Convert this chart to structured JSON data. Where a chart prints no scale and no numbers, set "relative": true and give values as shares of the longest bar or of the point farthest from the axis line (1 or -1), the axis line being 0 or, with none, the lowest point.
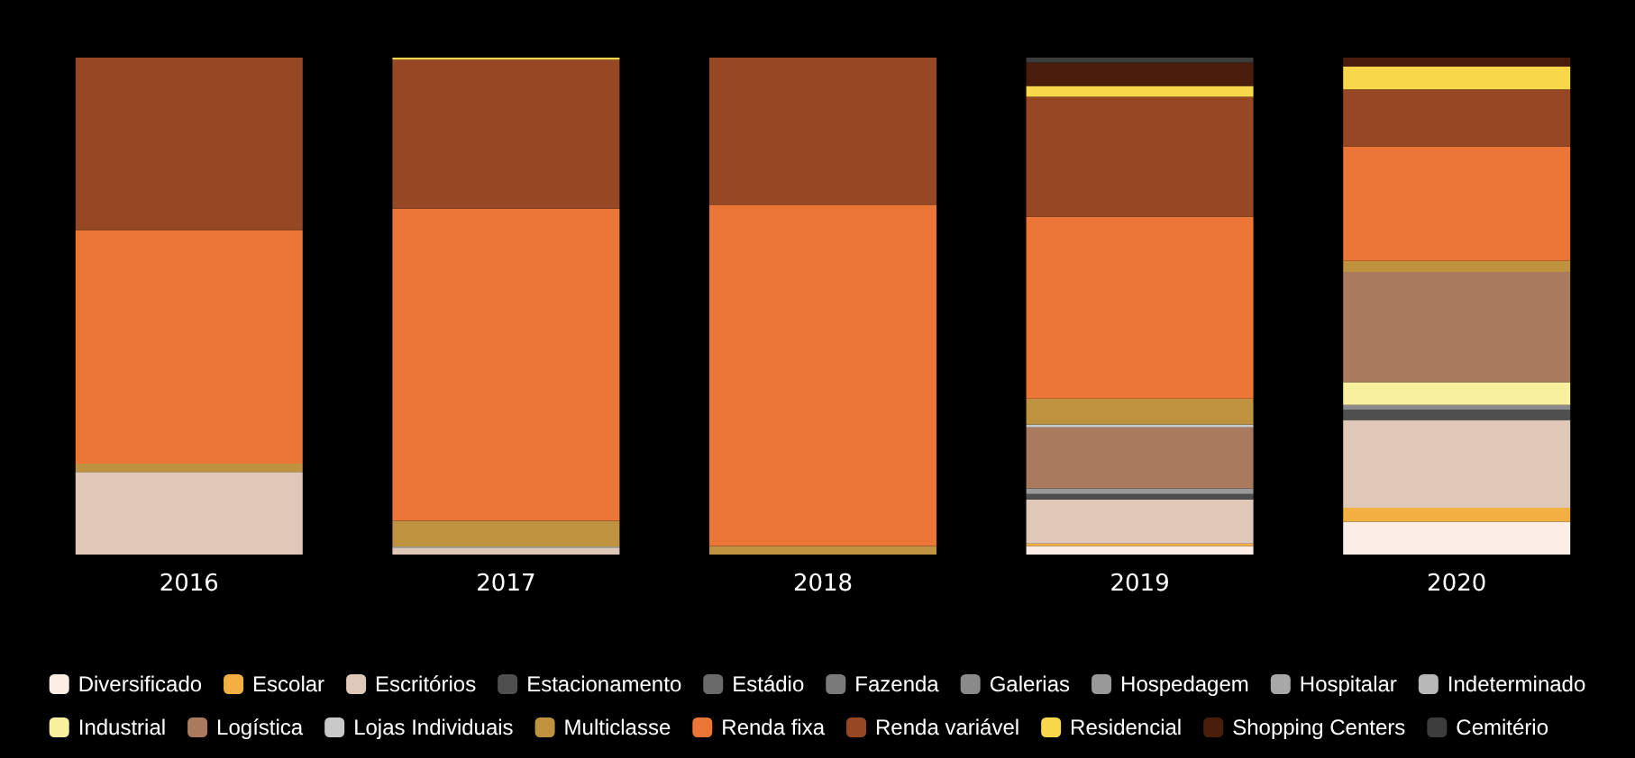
{
  "chart_data": {
    "type": "bar",
    "stacked": true,
    "relative": true,
    "legend": "bottom",
    "categories": [
      "2016",
      "2017",
      "2018",
      "2019",
      "2020"
    ],
    "series": [
      {
        "name": "Diversificado",
        "color": "#fbeee6",
        "values": [
          null,
          null,
          null,
          0.017,
          0.066
        ]
      },
      {
        "name": "Escolar",
        "color": "#f2b042",
        "values": [
          null,
          null,
          null,
          0.005,
          0.028
        ]
      },
      {
        "name": "Escritórios",
        "color": "#e0c8b8",
        "values": [
          0.166,
          0.013,
          null,
          0.089,
          0.177
        ]
      },
      {
        "name": "Estacionamento",
        "color": "#4f4f4f",
        "values": [
          null,
          null,
          null,
          0.011,
          0.02
        ]
      },
      {
        "name": "Estádio",
        "color": "#6a6a6a",
        "values": [
          null,
          null,
          null,
          null,
          null
        ]
      },
      {
        "name": "Fazenda",
        "color": "#7a7a7a",
        "values": [
          null,
          null,
          null,
          null,
          null
        ]
      },
      {
        "name": "Galerias",
        "color": "#8a8a8a",
        "values": [
          null,
          null,
          null,
          null,
          0.01
        ]
      },
      {
        "name": "Hospedagem",
        "color": "#999999",
        "values": [
          null,
          null,
          null,
          0.011,
          null
        ]
      },
      {
        "name": "Hospitalar",
        "color": "#a8a8a8",
        "values": [
          null,
          null,
          null,
          null,
          null
        ]
      },
      {
        "name": "Indeterminado",
        "color": "#b8b8b8",
        "values": [
          null,
          null,
          null,
          null,
          null
        ]
      },
      {
        "name": "Industrial",
        "color": "#f8f09e",
        "values": [
          null,
          null,
          null,
          null,
          0.046
        ]
      },
      {
        "name": "Logística",
        "color": "#a97a5e",
        "values": [
          null,
          null,
          null,
          0.123,
          0.222
        ]
      },
      {
        "name": "Lojas Individuais",
        "color": "#c8c8c8",
        "values": [
          null,
          0.003,
          null,
          0.006,
          null
        ]
      },
      {
        "name": "Multiclasse",
        "color": "#bf9240",
        "values": [
          0.017,
          0.052,
          0.017,
          0.052,
          0.022
        ]
      },
      {
        "name": "Renda fixa",
        "color": "#ec7538",
        "values": [
          0.47,
          0.628,
          0.686,
          0.366,
          0.23
        ]
      },
      {
        "name": "Renda variável",
        "color": "#954823",
        "values": [
          0.347,
          0.3,
          0.297,
          0.241,
          0.115
        ]
      },
      {
        "name": "Residencial",
        "color": "#f8d84a",
        "values": [
          null,
          0.004,
          null,
          0.022,
          0.046
        ]
      },
      {
        "name": "Shopping Centers",
        "color": "#4a1c0c",
        "values": [
          null,
          null,
          null,
          0.047,
          0.018
        ]
      },
      {
        "name": "Cemitério",
        "color": "#3c3c3c",
        "values": [
          null,
          null,
          null,
          0.01,
          null
        ]
      }
    ]
  }
}
